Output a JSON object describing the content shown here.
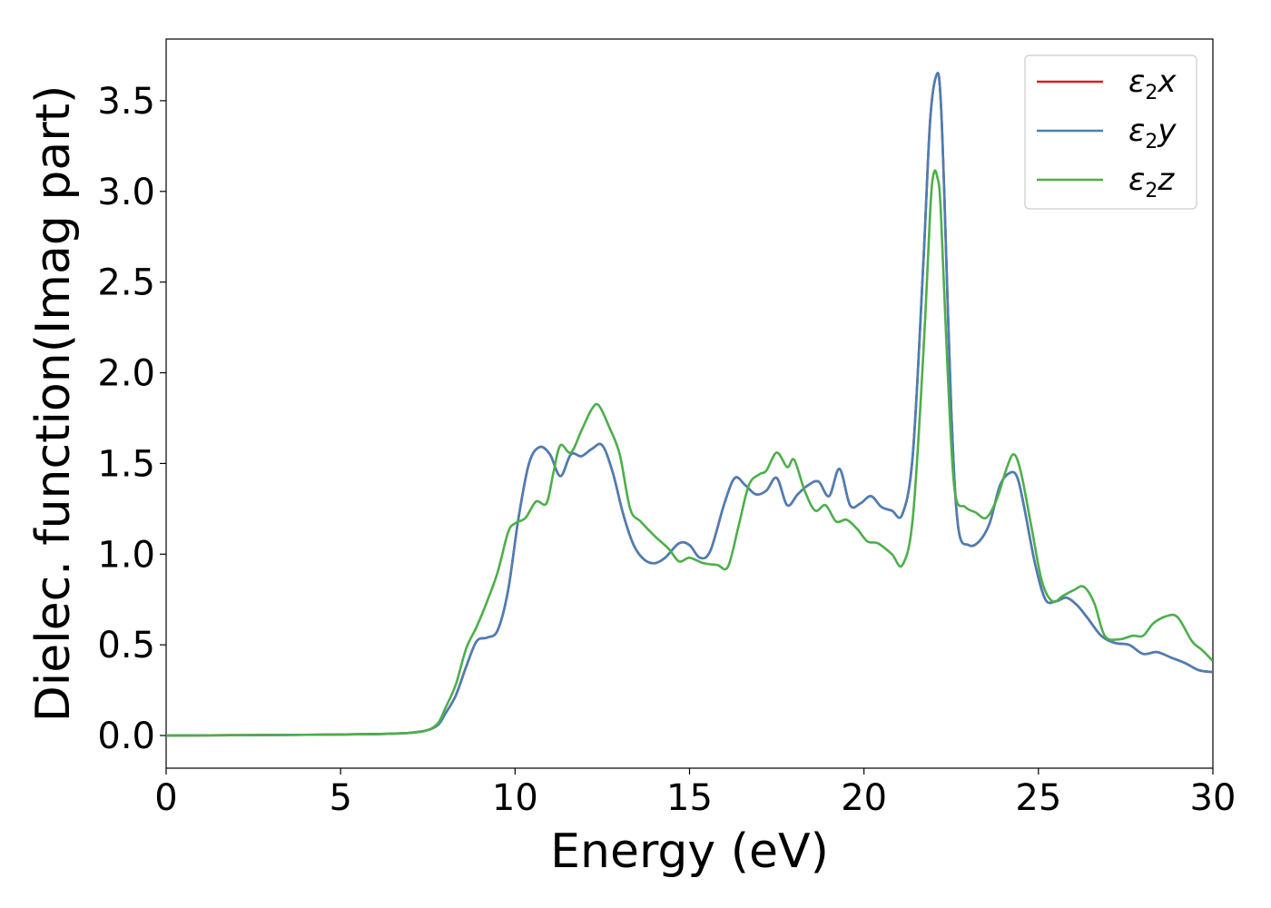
{
  "chart_data": {
    "type": "line",
    "title": "",
    "xlabel": "Energy (eV)",
    "ylabel": "Dielec. function(Imag part)",
    "xlim": [
      0,
      30
    ],
    "ylim": [
      -0.18,
      3.84
    ],
    "xticks": [
      0,
      5,
      10,
      15,
      20,
      25,
      30
    ],
    "xtick_labels": [
      "0",
      "5",
      "10",
      "15",
      "20",
      "25",
      "30"
    ],
    "yticks": [
      0.0,
      0.5,
      1.0,
      1.5,
      2.0,
      2.5,
      3.0,
      3.5
    ],
    "ytick_labels": [
      "0.0",
      "0.5",
      "1.0",
      "1.5",
      "2.0",
      "2.5",
      "3.0",
      "3.5"
    ],
    "grid": false,
    "legend_position": "top-right",
    "series": [
      {
        "name": "ε₂x",
        "base": "ε",
        "sub": "2",
        "var": "x",
        "color": "#e41a1c",
        "x": [
          0,
          2,
          4,
          6,
          7,
          7.5,
          7.8,
          8.0,
          8.3,
          8.6,
          8.9,
          9.2,
          9.5,
          9.8,
          10.1,
          10.4,
          10.7,
          11.0,
          11.3,
          11.6,
          11.9,
          12.2,
          12.5,
          12.8,
          13.1,
          13.4,
          13.7,
          14.0,
          14.3,
          14.7,
          15.0,
          15.3,
          15.6,
          16.0,
          16.3,
          16.6,
          16.9,
          17.2,
          17.5,
          17.8,
          18.1,
          18.4,
          18.7,
          19.0,
          19.3,
          19.6,
          19.9,
          20.2,
          20.5,
          20.8,
          21.1,
          21.4,
          21.7,
          21.9,
          22.1,
          22.2,
          22.3,
          22.5,
          22.7,
          23.0,
          23.3,
          23.6,
          23.9,
          24.2,
          24.4,
          24.6,
          24.9,
          25.2,
          25.5,
          25.8,
          26.1,
          26.4,
          26.8,
          27.2,
          27.6,
          28.0,
          28.4,
          28.8,
          29.2,
          29.6,
          30
        ],
        "y": [
          0,
          0.002,
          0.004,
          0.008,
          0.015,
          0.03,
          0.06,
          0.12,
          0.22,
          0.38,
          0.52,
          0.54,
          0.58,
          0.8,
          1.2,
          1.5,
          1.59,
          1.55,
          1.43,
          1.55,
          1.54,
          1.58,
          1.6,
          1.45,
          1.22,
          1.05,
          0.97,
          0.95,
          0.98,
          1.06,
          1.05,
          0.98,
          1.02,
          1.28,
          1.42,
          1.38,
          1.33,
          1.35,
          1.42,
          1.27,
          1.33,
          1.38,
          1.4,
          1.32,
          1.47,
          1.27,
          1.28,
          1.32,
          1.26,
          1.24,
          1.22,
          1.55,
          2.6,
          3.4,
          3.65,
          3.5,
          3.0,
          1.8,
          1.15,
          1.05,
          1.07,
          1.17,
          1.38,
          1.45,
          1.42,
          1.25,
          0.95,
          0.75,
          0.74,
          0.76,
          0.72,
          0.65,
          0.55,
          0.51,
          0.5,
          0.45,
          0.46,
          0.43,
          0.4,
          0.36,
          0.35
        ]
      },
      {
        "name": "ε₂y",
        "base": "ε",
        "sub": "2",
        "var": "y",
        "color": "#4a7fb5",
        "x": [
          0,
          2,
          4,
          6,
          7,
          7.5,
          7.8,
          8.0,
          8.3,
          8.6,
          8.9,
          9.2,
          9.5,
          9.8,
          10.1,
          10.4,
          10.7,
          11.0,
          11.3,
          11.6,
          11.9,
          12.2,
          12.5,
          12.8,
          13.1,
          13.4,
          13.7,
          14.0,
          14.3,
          14.7,
          15.0,
          15.3,
          15.6,
          16.0,
          16.3,
          16.6,
          16.9,
          17.2,
          17.5,
          17.8,
          18.1,
          18.4,
          18.7,
          19.0,
          19.3,
          19.6,
          19.9,
          20.2,
          20.5,
          20.8,
          21.1,
          21.4,
          21.7,
          21.9,
          22.1,
          22.2,
          22.3,
          22.5,
          22.7,
          23.0,
          23.3,
          23.6,
          23.9,
          24.2,
          24.4,
          24.6,
          24.9,
          25.2,
          25.5,
          25.8,
          26.1,
          26.4,
          26.8,
          27.2,
          27.6,
          28.0,
          28.4,
          28.8,
          29.2,
          29.6,
          30
        ],
        "y": [
          0,
          0.002,
          0.004,
          0.008,
          0.015,
          0.03,
          0.06,
          0.12,
          0.22,
          0.38,
          0.52,
          0.54,
          0.58,
          0.8,
          1.2,
          1.5,
          1.59,
          1.55,
          1.43,
          1.55,
          1.54,
          1.58,
          1.6,
          1.45,
          1.22,
          1.05,
          0.97,
          0.95,
          0.98,
          1.06,
          1.05,
          0.98,
          1.02,
          1.28,
          1.42,
          1.38,
          1.33,
          1.35,
          1.42,
          1.27,
          1.33,
          1.38,
          1.4,
          1.32,
          1.47,
          1.27,
          1.28,
          1.32,
          1.26,
          1.24,
          1.22,
          1.55,
          2.6,
          3.4,
          3.65,
          3.5,
          3.0,
          1.8,
          1.15,
          1.05,
          1.07,
          1.17,
          1.38,
          1.45,
          1.42,
          1.25,
          0.95,
          0.75,
          0.74,
          0.76,
          0.72,
          0.65,
          0.55,
          0.51,
          0.5,
          0.45,
          0.46,
          0.43,
          0.4,
          0.36,
          0.35
        ]
      },
      {
        "name": "ε₂z",
        "base": "ε",
        "sub": "2",
        "var": "z",
        "color": "#4daf4a",
        "x": [
          0,
          2,
          4,
          6,
          7,
          7.5,
          7.8,
          8.0,
          8.3,
          8.6,
          8.9,
          9.2,
          9.5,
          9.8,
          10.0,
          10.3,
          10.6,
          10.9,
          11.1,
          11.3,
          11.6,
          11.9,
          12.2,
          12.4,
          12.7,
          13.0,
          13.3,
          13.6,
          14.0,
          14.4,
          14.7,
          15.0,
          15.4,
          15.8,
          16.1,
          16.4,
          16.7,
          17.0,
          17.2,
          17.5,
          17.8,
          18.0,
          18.3,
          18.6,
          18.9,
          19.2,
          19.5,
          19.8,
          20.1,
          20.4,
          20.8,
          21.1,
          21.4,
          21.7,
          21.9,
          22.0,
          22.1,
          22.2,
          22.4,
          22.6,
          22.9,
          23.2,
          23.5,
          23.8,
          24.1,
          24.3,
          24.5,
          24.8,
          25.1,
          25.4,
          25.7,
          26.0,
          26.3,
          26.6,
          26.9,
          27.3,
          27.7,
          28.0,
          28.3,
          28.7,
          29.0,
          29.4,
          29.7,
          30
        ],
        "y": [
          0,
          0.002,
          0.004,
          0.008,
          0.015,
          0.03,
          0.07,
          0.15,
          0.28,
          0.48,
          0.6,
          0.74,
          0.9,
          1.12,
          1.17,
          1.2,
          1.29,
          1.28,
          1.45,
          1.6,
          1.56,
          1.68,
          1.8,
          1.82,
          1.7,
          1.55,
          1.25,
          1.18,
          1.1,
          1.03,
          0.96,
          0.98,
          0.95,
          0.94,
          0.93,
          1.15,
          1.38,
          1.44,
          1.46,
          1.56,
          1.48,
          1.52,
          1.35,
          1.24,
          1.27,
          1.18,
          1.19,
          1.14,
          1.07,
          1.06,
          1.0,
          0.94,
          1.2,
          2.1,
          2.9,
          3.1,
          3.08,
          2.9,
          2.0,
          1.35,
          1.26,
          1.23,
          1.2,
          1.3,
          1.48,
          1.55,
          1.45,
          1.15,
          0.85,
          0.74,
          0.77,
          0.8,
          0.82,
          0.73,
          0.55,
          0.53,
          0.55,
          0.55,
          0.62,
          0.66,
          0.65,
          0.52,
          0.47,
          0.41
        ]
      }
    ]
  }
}
